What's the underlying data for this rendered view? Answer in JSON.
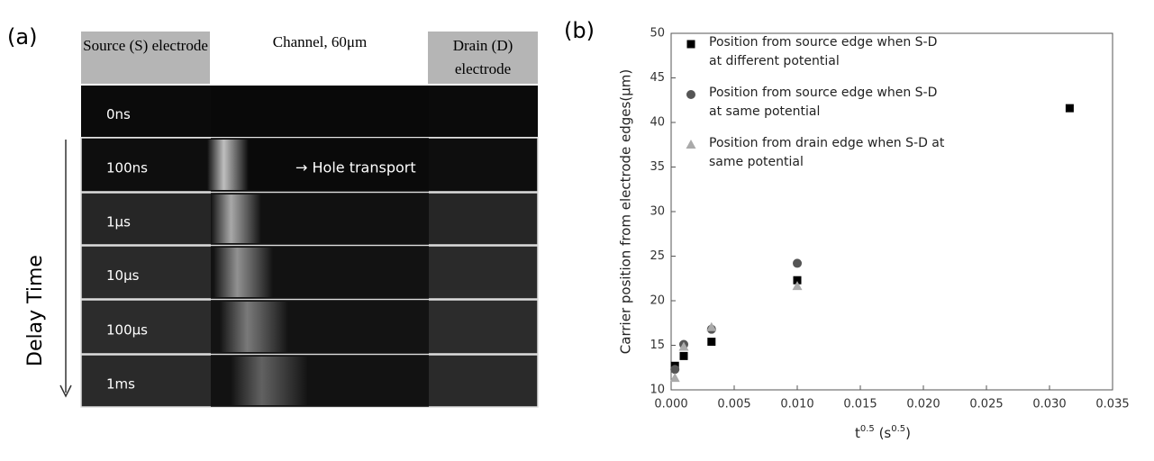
{
  "panel_a": {
    "label": "(a)",
    "source_header": "Source (S) electrode",
    "channel_header": "Channel,  60μm",
    "drain_header": "Drain (D) electrode",
    "rows": [
      "0ns",
      "100ns",
      "1μs",
      "10μs",
      "100μs",
      "1ms"
    ],
    "annotation": "→ Hole transport",
    "axis_label": "Delay Time"
  },
  "chart_data": {
    "type": "scatter",
    "panel_label": "(b)",
    "ylabel": "Carrier position from electrode edges(μm)",
    "xlabel_parts": [
      "t",
      "0.5",
      " (s",
      "0.5",
      ")"
    ],
    "xlim": [
      0,
      0.035
    ],
    "ylim": [
      10,
      50
    ],
    "xticks": [
      {
        "value": 0,
        "label": "0.000"
      },
      {
        "value": 0.005,
        "label": "0.005"
      },
      {
        "value": 0.01,
        "label": "0.010"
      },
      {
        "value": 0.015,
        "label": "0.015"
      },
      {
        "value": 0.02,
        "label": "0.020"
      },
      {
        "value": 0.025,
        "label": "0.025"
      },
      {
        "value": 0.03,
        "label": "0.030"
      },
      {
        "value": 0.035,
        "label": "0.035"
      }
    ],
    "yticks": [
      10,
      15,
      20,
      25,
      30,
      35,
      40,
      45,
      50
    ],
    "series": [
      {
        "name": "Position from source edge when S-D at different potential",
        "color": "#000000",
        "marker": "square",
        "x": [
          0.0003,
          0.001,
          0.0032,
          0.01,
          0.0316
        ],
        "values": [
          12.7,
          13.8,
          15.4,
          22.3,
          41.6
        ]
      },
      {
        "name": "Position from source edge when S-D at same potential",
        "color": "#555555",
        "marker": "circle",
        "x": [
          0.0003,
          0.001,
          0.0032,
          0.01
        ],
        "values": [
          12.3,
          15.1,
          16.8,
          24.2
        ]
      },
      {
        "name": "Position from drain edge when S-D at same potential",
        "color": "#aaaaaa",
        "marker": "triangle",
        "x": [
          0.0003,
          0.001,
          0.0032,
          0.01
        ],
        "values": [
          11.3,
          14.8,
          17.0,
          21.6
        ]
      }
    ]
  }
}
